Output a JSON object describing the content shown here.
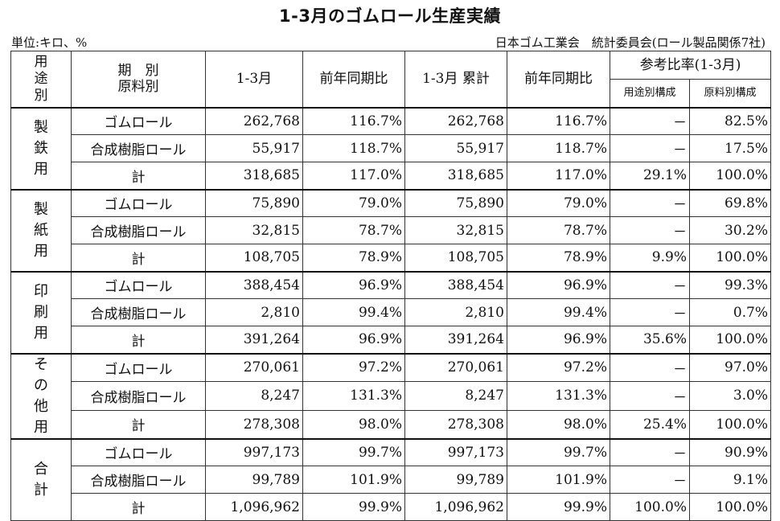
{
  "title": "1-3月のゴムロール生産実績",
  "unit": "単位:キロ、%",
  "source": "日本ゴム工業会　統計委員会(ロール製品関係7社)",
  "header": {
    "category": "用\n途\n別",
    "period": "期　別",
    "material": "原料別",
    "col_q": "1-3月",
    "col_yoy": "前年同期比",
    "col_cum": "1-3月 累計",
    "col_cum_yoy": "前年同期比",
    "ratio_group": "参考比率(1-3月)",
    "ratio_use": "用途別構成",
    "ratio_material": "原料別構成"
  },
  "sections": [
    {
      "category": "製\n鉄\n用",
      "rows": [
        {
          "label": "ゴムロール",
          "q": "262,768",
          "yoy": "116.7%",
          "cum": "262,768",
          "cum_yoy": "116.7%",
          "use": "－",
          "mat": "82.5%"
        },
        {
          "label": "合成樹脂ロール",
          "q": "55,917",
          "yoy": "118.7%",
          "cum": "55,917",
          "cum_yoy": "118.7%",
          "use": "－",
          "mat": "17.5%"
        },
        {
          "label": "計",
          "q": "318,685",
          "yoy": "117.0%",
          "cum": "318,685",
          "cum_yoy": "117.0%",
          "use": "29.1%",
          "mat": "100.0%"
        }
      ]
    },
    {
      "category": "製\n紙\n用",
      "rows": [
        {
          "label": "ゴムロール",
          "q": "75,890",
          "yoy": "79.0%",
          "cum": "75,890",
          "cum_yoy": "79.0%",
          "use": "－",
          "mat": "69.8%"
        },
        {
          "label": "合成樹脂ロール",
          "q": "32,815",
          "yoy": "78.7%",
          "cum": "32,815",
          "cum_yoy": "78.7%",
          "use": "－",
          "mat": "30.2%"
        },
        {
          "label": "計",
          "q": "108,705",
          "yoy": "78.9%",
          "cum": "108,705",
          "cum_yoy": "78.9%",
          "use": "9.9%",
          "mat": "100.0%"
        }
      ]
    },
    {
      "category": "印\n刷\n用",
      "rows": [
        {
          "label": "ゴムロール",
          "q": "388,454",
          "yoy": "96.9%",
          "cum": "388,454",
          "cum_yoy": "96.9%",
          "use": "－",
          "mat": "99.3%"
        },
        {
          "label": "合成樹脂ロール",
          "q": "2,810",
          "yoy": "99.4%",
          "cum": "2,810",
          "cum_yoy": "99.4%",
          "use": "－",
          "mat": "0.7%"
        },
        {
          "label": "計",
          "q": "391,264",
          "yoy": "96.9%",
          "cum": "391,264",
          "cum_yoy": "96.9%",
          "use": "35.6%",
          "mat": "100.0%"
        }
      ]
    },
    {
      "category": "そ\nの\n他\n用",
      "rows": [
        {
          "label": "ゴムロール",
          "q": "270,061",
          "yoy": "97.2%",
          "cum": "270,061",
          "cum_yoy": "97.2%",
          "use": "－",
          "mat": "97.0%"
        },
        {
          "label": "合成樹脂ロール",
          "q": "8,247",
          "yoy": "131.3%",
          "cum": "8,247",
          "cum_yoy": "131.3%",
          "use": "－",
          "mat": "3.0%"
        },
        {
          "label": "計",
          "q": "278,308",
          "yoy": "98.0%",
          "cum": "278,308",
          "cum_yoy": "98.0%",
          "use": "25.4%",
          "mat": "100.0%"
        }
      ]
    },
    {
      "category": "合\n計",
      "rows": [
        {
          "label": "ゴムロール",
          "q": "997,173",
          "yoy": "99.7%",
          "cum": "997,173",
          "cum_yoy": "99.7%",
          "use": "－",
          "mat": "90.9%"
        },
        {
          "label": "合成樹脂ロール",
          "q": "99,789",
          "yoy": "101.9%",
          "cum": "99,789",
          "cum_yoy": "101.9%",
          "use": "－",
          "mat": "9.1%"
        },
        {
          "label": "計",
          "q": "1,096,962",
          "yoy": "99.9%",
          "cum": "1,096,962",
          "cum_yoy": "99.9%",
          "use": "100.0%",
          "mat": "100.0%"
        }
      ]
    }
  ]
}
